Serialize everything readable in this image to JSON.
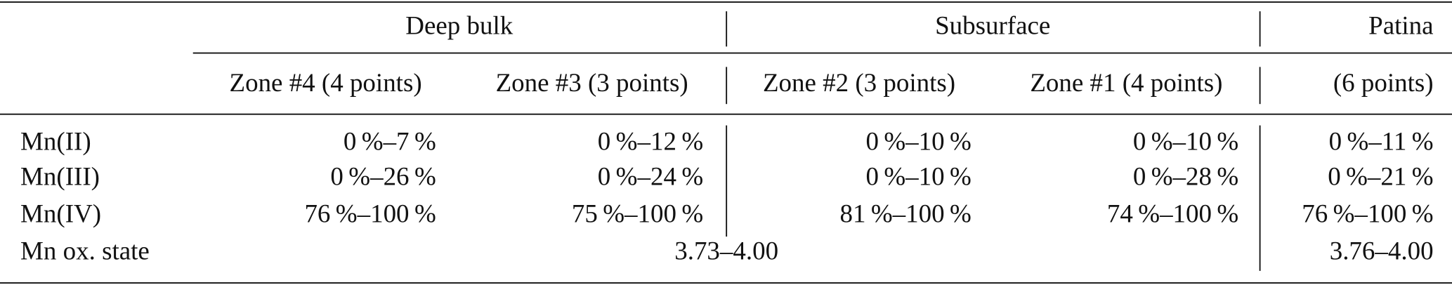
{
  "table": {
    "group_headers": [
      "Deep bulk",
      "Subsurface",
      "Patina"
    ],
    "column_headers": [
      "Zone #4 (4 points)",
      "Zone #3 (3 points)",
      "Zone #2 (3 points)",
      "Zone #1 (4 points)",
      "(6 points)"
    ],
    "rows": [
      {
        "label": "Mn(II)",
        "cells": [
          "0 %–7 %",
          "0 %–12 %",
          "0 %–10 %",
          "0 %–10 %",
          "0 %–11 %"
        ]
      },
      {
        "label": "Mn(III)",
        "cells": [
          "0 %–26 %",
          "0 %–24 %",
          "0 %–10 %",
          "0 %–28 %",
          "0 %–21 %"
        ]
      },
      {
        "label": "Mn(IV)",
        "cells": [
          "76 %–100 %",
          "75 %–100 %",
          "81 %–100 %",
          "74 %–100 %",
          "76 %–100 %"
        ]
      },
      {
        "label": "Mn ox. state",
        "cells": [
          "3.73–4.00",
          "3.76–4.00"
        ]
      }
    ]
  }
}
